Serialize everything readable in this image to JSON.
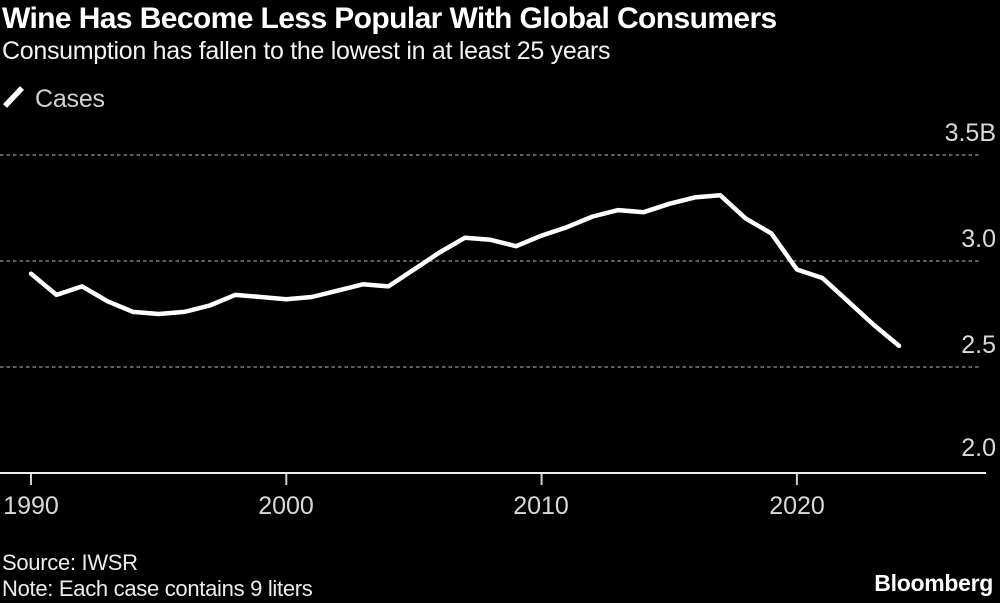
{
  "footer": {
    "source": "Source: IWSR",
    "note": "Note: Each case contains 9 liters",
    "brand": "Bloomberg"
  },
  "chart_data": {
    "type": "line",
    "title": "Wine Has Become Less Popular With Global Consumers",
    "subtitle": "Consumption has fallen to the lowest in at least 25 years",
    "xlabel": "",
    "ylabel": "",
    "xlim": [
      1990,
      2024
    ],
    "ylim": [
      2.0,
      3.5
    ],
    "grid": "horizontal dotted",
    "legend_position": "top-left",
    "x": [
      1990,
      1991,
      1992,
      1993,
      1994,
      1995,
      1996,
      1997,
      1998,
      1999,
      2000,
      2001,
      2002,
      2003,
      2004,
      2005,
      2006,
      2007,
      2008,
      2009,
      2010,
      2011,
      2012,
      2013,
      2014,
      2015,
      2016,
      2017,
      2018,
      2019,
      2020,
      2021,
      2022,
      2023,
      2024
    ],
    "series": [
      {
        "name": "Cases",
        "unit": "billion cases",
        "values": [
          2.94,
          2.84,
          2.88,
          2.81,
          2.76,
          2.75,
          2.76,
          2.79,
          2.84,
          2.83,
          2.82,
          2.83,
          2.86,
          2.89,
          2.88,
          2.96,
          3.04,
          3.11,
          3.1,
          3.07,
          3.12,
          3.16,
          3.21,
          3.24,
          3.23,
          3.27,
          3.3,
          3.31,
          3.2,
          3.13,
          2.96,
          2.92,
          2.81,
          2.7,
          2.6
        ]
      }
    ],
    "x_ticks": [
      {
        "label": "1990",
        "year": 1990
      },
      {
        "label": "2000",
        "year": 2000
      },
      {
        "label": "2010",
        "year": 2010
      },
      {
        "label": "2020",
        "year": 2020
      }
    ],
    "y_ticks": [
      {
        "label": "3.5B",
        "value": 3.5
      },
      {
        "label": "3.0",
        "value": 3.0
      },
      {
        "label": "2.5",
        "value": 2.5
      },
      {
        "label": "2.0",
        "value": 2.0
      }
    ],
    "colors": {
      "background": "#000000",
      "line": "#ffffff",
      "grid": "#5e5e5e",
      "axis": "#ededed",
      "tick": "#cfcfcf",
      "tick_label": "#d9d9d9",
      "title": "#ffffff",
      "subtitle": "#f2f2f2",
      "legend_label": "#d2d2d2"
    }
  }
}
